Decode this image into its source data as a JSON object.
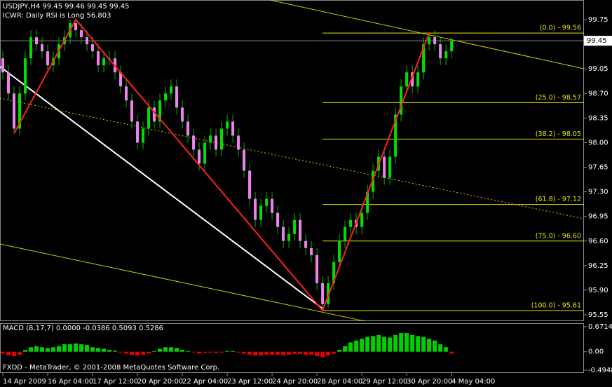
{
  "chart_data": {
    "type": "candlestick",
    "symbol_line": "USDJPY,H4  99.45 99.46 99.45 99.45",
    "indicator_line": "ICWR: Daily RSI is Long 56.803",
    "copyright": "FXDD - MetaTrader, © 2001-2008 MetaQuotes Software Corp.",
    "bull_color": "#00e000",
    "bear_color": "#ee82ee",
    "wick_color": "#00b000",
    "xlim": [
      -0.5,
      103.6
    ],
    "ylim": [
      95.46,
      100.03
    ],
    "yticks": [
      99.75,
      {
        "value": 99.05,
        "label": "99.05"
      },
      {
        "value": 98.7,
        "label": "98.70"
      },
      98.35,
      {
        "value": 98.0,
        "label": "98.00"
      },
      97.65,
      {
        "value": 97.3,
        "label": "97.30"
      },
      96.95,
      {
        "value": 96.6,
        "label": "96.60"
      },
      96.25,
      {
        "value": 95.9,
        "label": "95.90"
      },
      95.55
    ],
    "last_price": 99.45,
    "xticks": [
      {
        "value": 0,
        "label": "14 Apr 2009"
      },
      {
        "value": 8,
        "label": "16 Apr 04:00"
      },
      {
        "value": 16,
        "label": "17 Apr 12:00"
      },
      {
        "value": 24,
        "label": "20 Apr 20:00"
      },
      {
        "value": 32,
        "label": "22 Apr 04:00"
      },
      {
        "value": 40,
        "label": "23 Apr 12:00"
      },
      {
        "value": 48,
        "label": "24 Apr 20:00"
      },
      {
        "value": 56,
        "label": "28 Apr 04:00"
      },
      {
        "value": 64,
        "label": "29 Apr 12:00"
      },
      {
        "value": 72,
        "label": "30 Apr 20:00"
      },
      {
        "value": 80,
        "label": "4 May 04:00"
      }
    ],
    "candles": {
      "open": [
        99.2,
        99.0,
        98.7,
        98.2,
        98.7,
        99.2,
        99.5,
        99.4,
        99.3,
        99.1,
        99.2,
        99.4,
        99.5,
        99.7,
        99.6,
        99.5,
        99.4,
        99.3,
        99.1,
        99.2,
        99.2,
        99.0,
        98.8,
        98.6,
        98.3,
        98.0,
        98.2,
        98.5,
        98.3,
        98.6,
        98.7,
        98.8,
        98.5,
        98.3,
        98.1,
        97.9,
        97.7,
        98.0,
        98.1,
        97.9,
        98.2,
        98.3,
        98.1,
        97.9,
        97.6,
        97.2,
        96.9,
        97.1,
        97.2,
        97.0,
        96.8,
        96.6,
        96.7,
        96.9,
        96.6,
        96.5,
        96.4,
        96.0,
        95.7,
        96.0,
        96.3,
        96.6,
        96.8,
        96.9,
        96.8,
        97.0,
        97.3,
        97.6,
        97.8,
        97.5,
        97.8,
        98.4,
        98.8,
        99.0,
        98.8,
        99.0,
        99.4,
        99.5,
        99.4,
        99.2,
        99.3
      ],
      "high": [
        99.3,
        99.1,
        98.8,
        98.8,
        99.3,
        99.6,
        99.6,
        99.5,
        99.4,
        99.3,
        99.5,
        99.6,
        99.75,
        99.75,
        99.7,
        99.6,
        99.5,
        99.4,
        99.3,
        99.3,
        99.3,
        99.1,
        98.9,
        98.7,
        98.4,
        98.3,
        98.6,
        98.6,
        98.7,
        98.8,
        98.9,
        98.9,
        98.6,
        98.4,
        98.2,
        98.0,
        98.1,
        98.2,
        98.2,
        98.3,
        98.4,
        98.4,
        98.2,
        98.0,
        97.7,
        97.3,
        97.2,
        97.3,
        97.3,
        97.1,
        96.9,
        96.8,
        97.0,
        97.0,
        96.7,
        96.6,
        96.5,
        96.1,
        96.1,
        96.4,
        96.7,
        96.9,
        97.0,
        97.0,
        97.1,
        97.4,
        97.7,
        97.9,
        97.9,
        97.9,
        98.5,
        98.9,
        99.1,
        99.1,
        99.1,
        99.5,
        99.56,
        99.6,
        99.5,
        99.4,
        99.5
      ],
      "low": [
        98.9,
        98.6,
        98.13,
        98.1,
        98.6,
        99.1,
        99.3,
        99.2,
        99.0,
        99.0,
        99.1,
        99.3,
        99.4,
        99.5,
        99.4,
        99.3,
        99.2,
        99.0,
        99.0,
        99.1,
        98.9,
        98.7,
        98.5,
        98.2,
        97.9,
        97.9,
        98.1,
        98.2,
        98.2,
        98.5,
        98.6,
        98.4,
        98.2,
        98.0,
        97.8,
        97.6,
        97.6,
        97.9,
        97.8,
        97.8,
        98.1,
        98.0,
        97.8,
        97.5,
        97.1,
        96.8,
        96.8,
        97.0,
        96.9,
        96.7,
        96.5,
        96.5,
        96.6,
        96.5,
        96.4,
        96.3,
        95.9,
        95.61,
        95.65,
        95.9,
        96.2,
        96.5,
        96.7,
        96.7,
        96.7,
        96.9,
        97.2,
        97.5,
        97.4,
        97.4,
        97.7,
        98.3,
        98.7,
        98.7,
        98.7,
        98.9,
        99.3,
        99.3,
        99.1,
        99.1,
        99.2
      ],
      "close": [
        99.0,
        98.7,
        98.2,
        98.7,
        99.2,
        99.5,
        99.4,
        99.3,
        99.1,
        99.2,
        99.4,
        99.5,
        99.7,
        99.6,
        99.5,
        99.4,
        99.3,
        99.1,
        99.2,
        99.2,
        99.0,
        98.8,
        98.6,
        98.3,
        98.0,
        98.2,
        98.5,
        98.3,
        98.6,
        98.7,
        98.8,
        98.5,
        98.3,
        98.1,
        97.9,
        97.7,
        98.0,
        98.1,
        97.9,
        98.2,
        98.3,
        98.1,
        97.9,
        97.6,
        97.2,
        96.9,
        97.1,
        97.2,
        97.0,
        96.8,
        96.6,
        96.7,
        96.9,
        96.6,
        96.5,
        96.4,
        96.0,
        95.7,
        96.0,
        96.3,
        96.6,
        96.8,
        96.9,
        96.8,
        97.0,
        97.3,
        97.6,
        97.8,
        97.5,
        97.8,
        98.4,
        98.8,
        99.0,
        98.8,
        99.0,
        99.4,
        99.5,
        99.4,
        99.2,
        99.3,
        99.45
      ]
    },
    "zigzag": {
      "color": "#ff2020",
      "x": [
        2,
        13,
        57,
        76
      ],
      "y": [
        98.13,
        99.75,
        95.61,
        99.56
      ]
    },
    "fib_color": "#e6e600",
    "fib_levels": [
      {
        "value": 99.56,
        "label": "(0.0) - 99.56"
      },
      {
        "value": 98.57,
        "label": "(25.0) - 98.57"
      },
      {
        "value": 98.05,
        "label": "(38.2) - 98.05"
      },
      {
        "value": 97.12,
        "label": "(61.8) - 97.12"
      },
      {
        "value": 96.6,
        "label": "(75.0) - 96.60"
      },
      {
        "value": 95.61,
        "label": "(100.0) - 95.61"
      }
    ],
    "macd": {
      "title": "MACD  (8,17,7) 0.0000 -0.0386 0.5093 0.5286",
      "ylim": [
        -0.57,
        0.765
      ],
      "yticks": [
        0.6714,
        {
          "value": 0,
          "label": "0.00"
        },
        -0.4948
      ],
      "up_color": "#00d000",
      "down_color": "#e00000",
      "values": [
        -0.05,
        -0.1,
        -0.12,
        -0.08,
        0.05,
        0.12,
        0.15,
        0.12,
        0.1,
        0.12,
        0.15,
        0.2,
        0.2,
        0.22,
        0.2,
        0.18,
        0.12,
        0.1,
        0.08,
        0.05,
        0.03,
        -0.02,
        -0.05,
        -0.08,
        -0.1,
        -0.08,
        -0.05,
        0.02,
        0.08,
        0.12,
        0.12,
        0.1,
        0.05,
        0.02,
        -0.02,
        -0.05,
        -0.03,
        -0.02,
        -0.03,
        -0.02,
        0.02,
        0.02,
        -0.02,
        -0.05,
        -0.08,
        -0.1,
        -0.1,
        -0.08,
        -0.08,
        -0.08,
        -0.1,
        -0.08,
        -0.06,
        -0.06,
        -0.08,
        -0.08,
        -0.12,
        -0.15,
        -0.1,
        -0.05,
        0.05,
        0.15,
        0.25,
        0.3,
        0.35,
        0.4,
        0.42,
        0.45,
        0.4,
        0.38,
        0.45,
        0.5,
        0.5,
        0.45,
        0.42,
        0.4,
        0.35,
        0.3,
        0.2,
        0.12,
        -0.05
      ]
    }
  }
}
